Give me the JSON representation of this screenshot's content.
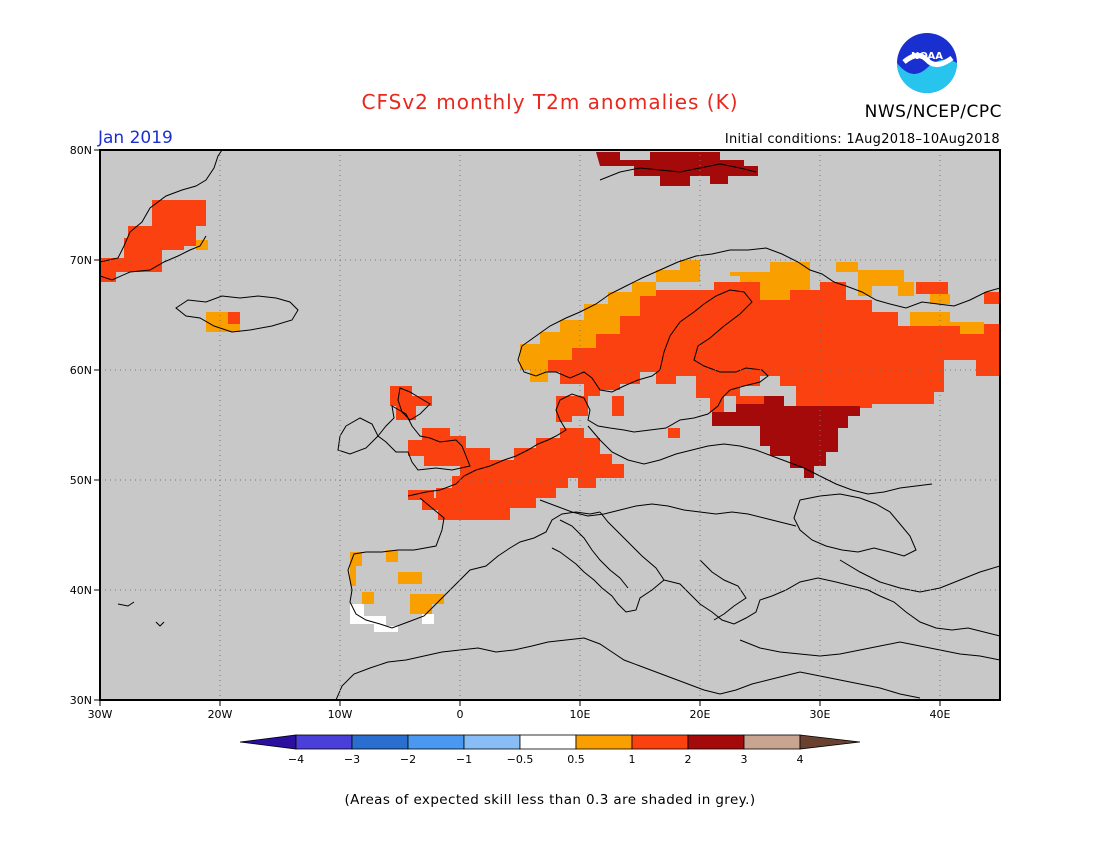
{
  "title": "CFSv2 monthly T2m anomalies (K)",
  "agency": "NWS/NCEP/CPC",
  "logo_text": "NOAA",
  "month": "Jan 2019",
  "initial_conditions": "Initial conditions: 1Aug2018–10Aug2018",
  "footnote": "(Areas of expected skill less than 0.3 are shaded in grey.)",
  "map": {
    "projection": "lat-lon",
    "lon_range": [
      -30,
      45
    ],
    "lat_range": [
      30,
      80
    ],
    "background_color": "#c8c8c8",
    "gridlines": "dotted",
    "lat_ticks": [
      "30N",
      "40N",
      "50N",
      "60N",
      "70N",
      "80N"
    ],
    "lon_ticks": [
      "30W",
      "20W",
      "10W",
      "0",
      "10E",
      "20E",
      "30E",
      "40E"
    ]
  },
  "legend": {
    "labels": [
      "−4",
      "−3",
      "−2",
      "−1",
      "−0.5",
      "0.5",
      "1",
      "2",
      "3",
      "4"
    ],
    "colors": [
      "#2a0fa0",
      "#4a3fd8",
      "#2a6fd0",
      "#4a98f0",
      "#88bdf5",
      "#ffffff",
      "#f9a000",
      "#fb4110",
      "#a40a0a",
      "#c9a490",
      "#6a4030"
    ]
  },
  "anomaly_regions": [
    {
      "region": "Greenland east coast",
      "category": "1-2"
    },
    {
      "region": "Iceland",
      "category": "0.5-1"
    },
    {
      "region": "Scotland / N. Ireland",
      "category": "1-2"
    },
    {
      "region": "England & North Sea",
      "category": "1-2"
    },
    {
      "region": "France / Benelux / Germany",
      "category": "1-2"
    },
    {
      "region": "Norway coast",
      "category": "0.5-1"
    },
    {
      "region": "Scandinavia / Finland",
      "category": "1-2"
    },
    {
      "region": "Svalbard",
      "category": "2-3"
    },
    {
      "region": "Baltics / W. Russia",
      "category": "1-2"
    },
    {
      "region": "Belarus / W. Russia",
      "category": "2-3"
    },
    {
      "region": "Kola / N. Russia",
      "category": "0.5-1"
    },
    {
      "region": "Iberia",
      "category": "0.5-1"
    },
    {
      "region": "SW Iberia",
      "category": "-0.5-0.5"
    }
  ]
}
